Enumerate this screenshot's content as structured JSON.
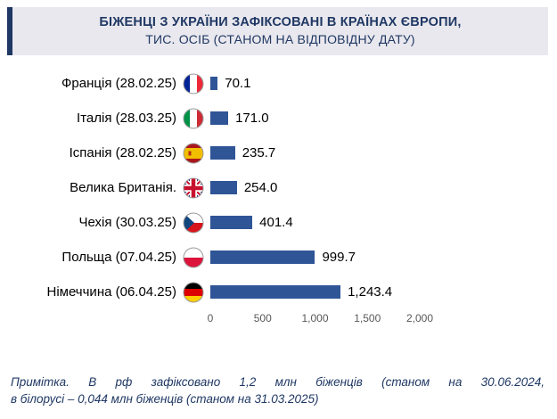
{
  "title": {
    "line1": "БІЖЕНЦІ З УКРАЇНИ ЗАФІКСОВАНІ В КРАЇНАХ ЄВРОПИ,",
    "line2": "ТИС. ОСІБ (СТАНОМ НА ВІДПОВІДНУ ДАТУ)"
  },
  "chart_data": {
    "type": "bar",
    "orientation": "horizontal",
    "title": "БІЖЕНЦІ З УКРАЇНИ ЗАФІКСОВАНІ В КРАЇНАХ ЄВРОПИ, ТИС. ОСІБ (СТАНОМ НА ВІДПОВІДНУ ДАТУ)",
    "categories": [
      "Франція (28.02.25)",
      "Італія (28.03.25)",
      "Іспанія (28.02.25)",
      "Велика Британія.",
      "Чехія (30.03.25)",
      "Польща (07.04.25)",
      "Німеччина (06.04.25)"
    ],
    "values": [
      70.1,
      171.0,
      235.7,
      254.0,
      401.4,
      999.7,
      1243.4
    ],
    "value_labels": [
      "70.1",
      "171.0",
      "235.7",
      "254.0",
      "401.4",
      "999.7",
      "1,243.4"
    ],
    "flags": [
      "france-flag-icon",
      "italy-flag-icon",
      "spain-flag-icon",
      "uk-flag-icon",
      "czechia-flag-icon",
      "poland-flag-icon",
      "germany-flag-icon"
    ],
    "xlim": [
      0,
      2000
    ],
    "x_ticks": [
      "0",
      "500",
      "1,000",
      "1,500",
      "2,000"
    ],
    "bar_color": "#2f5597",
    "grid": false,
    "legend": false
  },
  "footnote": {
    "line1": "Примітка. В рф зафіксовано 1,2 млн біженців (станом на 30.06.2024,",
    "line2": "в білорусі – 0,044 млн біженців (станом на 31.03.2025)"
  }
}
